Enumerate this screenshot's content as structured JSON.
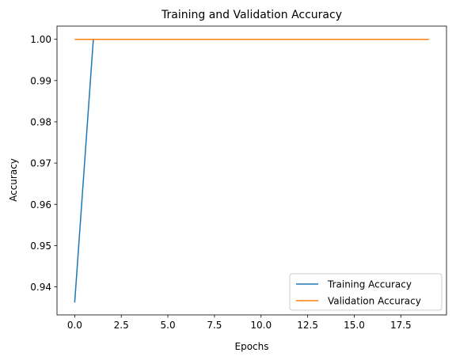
{
  "chart_data": {
    "type": "line",
    "title": "Training and Validation Accuracy",
    "xlabel": "Epochs",
    "ylabel": "Accuracy",
    "xlim": [
      -0.95,
      19.95
    ],
    "ylim": [
      0.9332,
      1.0032
    ],
    "x_ticks": [
      0.0,
      2.5,
      5.0,
      7.5,
      10.0,
      12.5,
      15.0,
      17.5
    ],
    "x_tick_labels": [
      "0.0",
      "2.5",
      "5.0",
      "7.5",
      "10.0",
      "12.5",
      "15.0",
      "17.5"
    ],
    "y_ticks": [
      0.94,
      0.95,
      0.96,
      0.97,
      0.98,
      0.99,
      1.0
    ],
    "y_tick_labels": [
      "0.94",
      "0.95",
      "0.96",
      "0.97",
      "0.98",
      "0.99",
      "1.00"
    ],
    "grid": false,
    "legend_position": "lower-right",
    "x": [
      0,
      1,
      2,
      3,
      4,
      5,
      6,
      7,
      8,
      9,
      10,
      11,
      12,
      13,
      14,
      15,
      16,
      17,
      18,
      19
    ],
    "series": [
      {
        "name": "Training Accuracy",
        "color": "#1f77b4",
        "values": [
          0.9362,
          1.0,
          1.0,
          1.0,
          1.0,
          1.0,
          1.0,
          1.0,
          1.0,
          1.0,
          1.0,
          1.0,
          1.0,
          1.0,
          1.0,
          1.0,
          1.0,
          1.0,
          1.0,
          1.0
        ]
      },
      {
        "name": "Validation Accuracy",
        "color": "#ff7f0e",
        "values": [
          1.0,
          1.0,
          1.0,
          1.0,
          1.0,
          1.0,
          1.0,
          1.0,
          1.0,
          1.0,
          1.0,
          1.0,
          1.0,
          1.0,
          1.0,
          1.0,
          1.0,
          1.0,
          1.0,
          1.0
        ]
      }
    ]
  }
}
